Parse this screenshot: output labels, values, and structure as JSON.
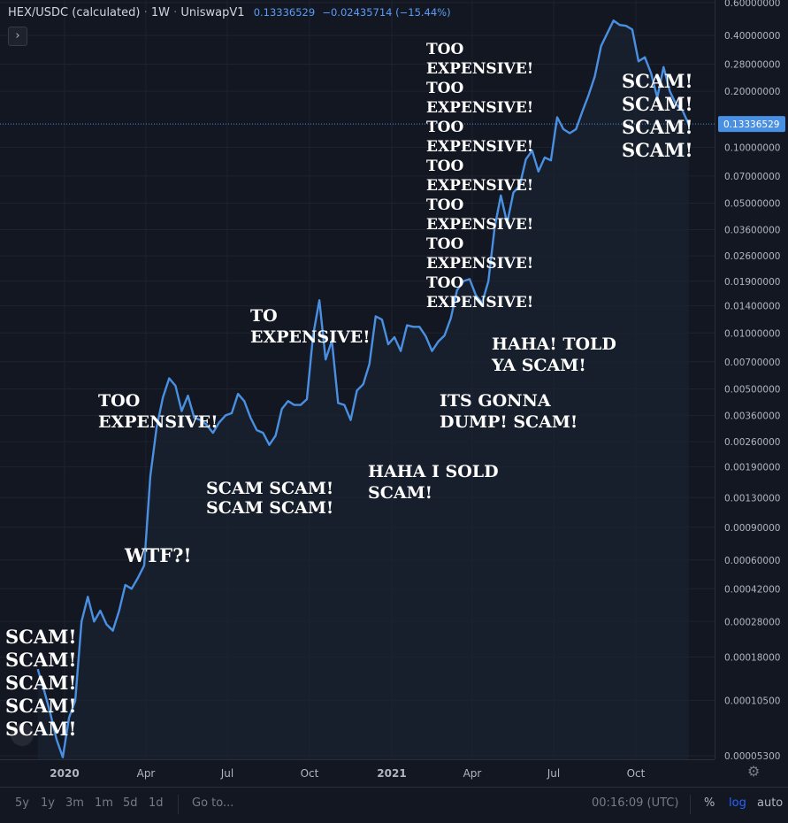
{
  "legend": {
    "symbol": "HEX/USDC (calculated)",
    "interval": "1W",
    "exchange": "UniswapV1",
    "last": "0.13336529",
    "change": "−0.02435714 (−15.44%)",
    "collapse_glyph": "›"
  },
  "colors": {
    "background": "#131722",
    "line": "#4a90e2",
    "grid": "#2a2e39",
    "price_tag": "#4a90e2"
  },
  "price_axis": {
    "labels": [
      "0.60000000",
      "0.40000000",
      "0.28000000",
      "0.20000000",
      "0.10000000",
      "0.07000000",
      "0.05000000",
      "0.03600000",
      "0.02600000",
      "0.01900000",
      "0.01400000",
      "0.01000000",
      "0.00700000",
      "0.00500000",
      "0.00360000",
      "0.00260000",
      "0.00190000",
      "0.00130000",
      "0.00090000",
      "0.00060000",
      "0.00042000",
      "0.00028000",
      "0.00018000",
      "0.00010500",
      "0.00005300"
    ],
    "current_tag": "0.13336529"
  },
  "time_axis": {
    "labels": [
      "2020",
      "Apr",
      "Jul",
      "Oct",
      "2021",
      "Apr",
      "Jul",
      "Oct"
    ]
  },
  "annotations": {
    "scam_left": "SCAM!\nSCAM!\nSCAM!\nSCAM!\nSCAM!",
    "wtf": "WTF?!",
    "too_expensive_1": "TOO\nEXPENSIVE!",
    "scam_scam": "SCAM SCAM!\nSCAM SCAM!",
    "to_expensive": "TO\nEXPENSIVE!",
    "haha_sold": "HAHA I SOLD\nSCAM!",
    "gonna_dump": "ITS GONNA\nDUMP! SCAM!",
    "told_ya": "HAHA! TOLD\nYA SCAM!",
    "too_expensive_stack": "TOO\nEXPENSIVE!\nTOO\nEXPENSIVE!\nTOO\nEXPENSIVE!\nTOO\nEXPENSIVE!\nTOO\nEXPENSIVE!\nTOO\nEXPENSIVE!\nTOO\nEXPENSIVE!",
    "scam_right": "SCAM!\nSCAM!\nSCAM!\nSCAM!"
  },
  "bottom_bar": {
    "ranges": [
      "5y",
      "1y",
      "3m",
      "1m",
      "5d",
      "1d"
    ],
    "goto": "Go to...",
    "clock": "00:16:09 (UTC)",
    "percent": "%",
    "log": "log",
    "auto": "auto"
  },
  "chart_data": {
    "type": "line",
    "title": "HEX/USDC (calculated)",
    "interval": "1W",
    "scale": "log",
    "x_range": [
      "2019-12",
      "2021-12"
    ],
    "y_range": [
      5.3e-05,
      0.6
    ],
    "series": [
      {
        "name": "HEX/USDC",
        "points": [
          [
            "2019-12-02",
            0.000155
          ],
          [
            "2019-12-09",
            0.00012
          ],
          [
            "2019-12-16",
            9e-05
          ],
          [
            "2019-12-23",
            6.5e-05
          ],
          [
            "2019-12-30",
            5.2e-05
          ],
          [
            "2020-01-06",
            8.5e-05
          ],
          [
            "2020-01-13",
            0.000105
          ],
          [
            "2020-01-20",
            0.00028
          ],
          [
            "2020-01-27",
            0.00038
          ],
          [
            "2020-02-03",
            0.00028
          ],
          [
            "2020-02-10",
            0.00032
          ],
          [
            "2020-02-17",
            0.00027
          ],
          [
            "2020-02-24",
            0.00025
          ],
          [
            "2020-03-02",
            0.00032
          ],
          [
            "2020-03-09",
            0.00044
          ],
          [
            "2020-03-16",
            0.00042
          ],
          [
            "2020-03-23",
            0.00048
          ],
          [
            "2020-03-30",
            0.00056
          ],
          [
            "2020-04-06",
            0.0017
          ],
          [
            "2020-04-13",
            0.0031
          ],
          [
            "2020-04-20",
            0.0045
          ],
          [
            "2020-04-27",
            0.0057
          ],
          [
            "2020-05-04",
            0.0052
          ],
          [
            "2020-05-11",
            0.0038
          ],
          [
            "2020-05-18",
            0.0046
          ],
          [
            "2020-05-25",
            0.0035
          ],
          [
            "2020-06-01",
            0.0034
          ],
          [
            "2020-06-08",
            0.0032
          ],
          [
            "2020-06-15",
            0.0029
          ],
          [
            "2020-06-22",
            0.0033
          ],
          [
            "2020-06-29",
            0.0036
          ],
          [
            "2020-07-06",
            0.0037
          ],
          [
            "2020-07-13",
            0.0047
          ],
          [
            "2020-07-20",
            0.0043
          ],
          [
            "2020-07-27",
            0.0035
          ],
          [
            "2020-08-03",
            0.003
          ],
          [
            "2020-08-10",
            0.0029
          ],
          [
            "2020-08-17",
            0.0025
          ],
          [
            "2020-08-24",
            0.0028
          ],
          [
            "2020-08-31",
            0.0039
          ],
          [
            "2020-09-07",
            0.0043
          ],
          [
            "2020-09-14",
            0.0041
          ],
          [
            "2020-09-21",
            0.0041
          ],
          [
            "2020-09-28",
            0.0044
          ],
          [
            "2020-10-05",
            0.0097
          ],
          [
            "2020-10-12",
            0.015
          ],
          [
            "2020-10-19",
            0.0072
          ],
          [
            "2020-10-26",
            0.0091
          ],
          [
            "2020-11-02",
            0.0042
          ],
          [
            "2020-11-09",
            0.0041
          ],
          [
            "2020-11-16",
            0.0034
          ],
          [
            "2020-11-23",
            0.0049
          ],
          [
            "2020-11-30",
            0.0053
          ],
          [
            "2020-12-07",
            0.0068
          ],
          [
            "2020-12-14",
            0.0123
          ],
          [
            "2020-12-21",
            0.0118
          ],
          [
            "2020-12-28",
            0.0087
          ],
          [
            "2021-01-04",
            0.0095
          ],
          [
            "2021-01-11",
            0.008
          ],
          [
            "2021-01-18",
            0.011
          ],
          [
            "2021-01-25",
            0.0108
          ],
          [
            "2021-02-01",
            0.0108
          ],
          [
            "2021-02-08",
            0.0096
          ],
          [
            "2021-02-15",
            0.008
          ],
          [
            "2021-02-22",
            0.009
          ],
          [
            "2021-03-01",
            0.0097
          ],
          [
            "2021-03-08",
            0.012
          ],
          [
            "2021-03-15",
            0.017
          ],
          [
            "2021-03-22",
            0.019
          ],
          [
            "2021-03-29",
            0.0195
          ],
          [
            "2021-04-05",
            0.016
          ],
          [
            "2021-04-12",
            0.0145
          ],
          [
            "2021-04-19",
            0.019
          ],
          [
            "2021-04-26",
            0.037
          ],
          [
            "2021-05-03",
            0.055
          ],
          [
            "2021-05-10",
            0.039
          ],
          [
            "2021-05-17",
            0.057
          ],
          [
            "2021-05-24",
            0.062
          ],
          [
            "2021-05-31",
            0.086
          ],
          [
            "2021-06-07",
            0.096
          ],
          [
            "2021-06-14",
            0.074
          ],
          [
            "2021-06-21",
            0.088
          ],
          [
            "2021-06-28",
            0.085
          ],
          [
            "2021-07-05",
            0.145
          ],
          [
            "2021-07-12",
            0.125
          ],
          [
            "2021-07-19",
            0.119
          ],
          [
            "2021-07-26",
            0.125
          ],
          [
            "2021-08-02",
            0.155
          ],
          [
            "2021-08-09",
            0.19
          ],
          [
            "2021-08-16",
            0.24
          ],
          [
            "2021-08-23",
            0.35
          ],
          [
            "2021-08-30",
            0.41
          ],
          [
            "2021-09-06",
            0.48
          ],
          [
            "2021-09-13",
            0.455
          ],
          [
            "2021-09-20",
            0.45
          ],
          [
            "2021-09-27",
            0.43
          ],
          [
            "2021-10-04",
            0.29
          ],
          [
            "2021-10-11",
            0.305
          ],
          [
            "2021-10-18",
            0.25
          ],
          [
            "2021-10-25",
            0.185
          ],
          [
            "2021-11-01",
            0.27
          ],
          [
            "2021-11-08",
            0.2
          ],
          [
            "2021-11-15",
            0.17
          ],
          [
            "2021-11-22",
            0.158
          ],
          [
            "2021-11-29",
            0.1334
          ]
        ]
      }
    ]
  }
}
